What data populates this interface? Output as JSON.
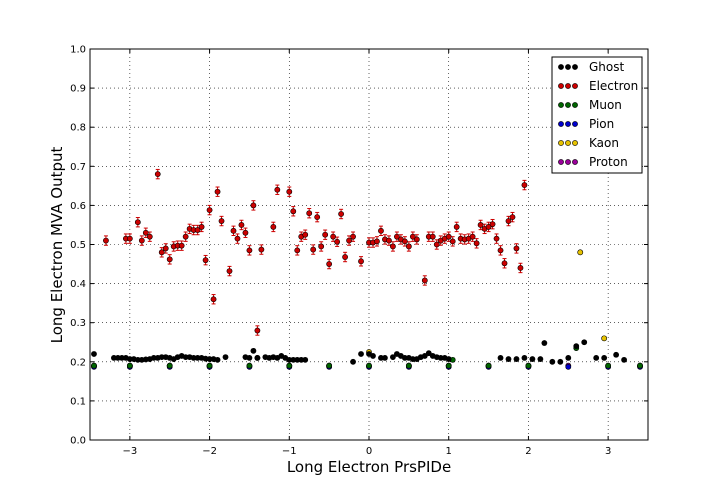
{
  "chart_data": {
    "type": "scatter",
    "title": "",
    "xlabel": "Long Electron PrsPIDe",
    "ylabel": "Long Electron MVA Output",
    "xlim": [
      -3.5,
      3.5
    ],
    "ylim": [
      0.0,
      1.0
    ],
    "x_ticks": [
      -3,
      -2,
      -1,
      0,
      1,
      2,
      3
    ],
    "x_tick_labels": [
      "−3",
      "−2",
      "−1",
      "0",
      "1",
      "2",
      "3"
    ],
    "y_ticks": [
      0.0,
      0.1,
      0.2,
      0.3,
      0.4,
      0.5,
      0.6,
      0.7,
      0.8,
      0.9,
      1.0
    ],
    "y_tick_labels": [
      "0.0",
      "0.1",
      "0.2",
      "0.3",
      "0.4",
      "0.5",
      "0.6",
      "0.7",
      "0.8",
      "0.9",
      "1.0"
    ],
    "grid": true,
    "legend_position": "top-right",
    "error_bars": true,
    "series": [
      {
        "name": "Ghost",
        "color": "#000000",
        "points": [
          [
            -3.45,
            0.22
          ],
          [
            -3.2,
            0.21
          ],
          [
            -3.15,
            0.21
          ],
          [
            -3.1,
            0.21
          ],
          [
            -3.05,
            0.21
          ],
          [
            -3.0,
            0.207
          ],
          [
            -2.95,
            0.207
          ],
          [
            -2.9,
            0.205
          ],
          [
            -2.85,
            0.205
          ],
          [
            -2.8,
            0.206
          ],
          [
            -2.75,
            0.207
          ],
          [
            -2.7,
            0.21
          ],
          [
            -2.65,
            0.21
          ],
          [
            -2.6,
            0.212
          ],
          [
            -2.55,
            0.212
          ],
          [
            -2.5,
            0.21
          ],
          [
            -2.45,
            0.207
          ],
          [
            -2.4,
            0.212
          ],
          [
            -2.35,
            0.215
          ],
          [
            -2.3,
            0.212
          ],
          [
            -2.25,
            0.212
          ],
          [
            -2.2,
            0.21
          ],
          [
            -2.15,
            0.21
          ],
          [
            -2.1,
            0.21
          ],
          [
            -2.05,
            0.208
          ],
          [
            -2.0,
            0.207
          ],
          [
            -1.95,
            0.207
          ],
          [
            -1.9,
            0.205
          ],
          [
            -1.8,
            0.212
          ],
          [
            -1.55,
            0.212
          ],
          [
            -1.5,
            0.21
          ],
          [
            -1.45,
            0.228
          ],
          [
            -1.4,
            0.21
          ],
          [
            -1.3,
            0.212
          ],
          [
            -1.25,
            0.21
          ],
          [
            -1.2,
            0.212
          ],
          [
            -1.15,
            0.21
          ],
          [
            -1.1,
            0.215
          ],
          [
            -1.05,
            0.21
          ],
          [
            -1.0,
            0.205
          ],
          [
            -0.95,
            0.205
          ],
          [
            -0.9,
            0.205
          ],
          [
            -0.85,
            0.205
          ],
          [
            -0.8,
            0.205
          ],
          [
            -0.2,
            0.2
          ],
          [
            -0.1,
            0.22
          ],
          [
            0.0,
            0.22
          ],
          [
            0.05,
            0.215
          ],
          [
            0.15,
            0.21
          ],
          [
            0.2,
            0.21
          ],
          [
            0.3,
            0.212
          ],
          [
            0.35,
            0.22
          ],
          [
            0.4,
            0.215
          ],
          [
            0.45,
            0.21
          ],
          [
            0.5,
            0.21
          ],
          [
            0.55,
            0.207
          ],
          [
            0.6,
            0.207
          ],
          [
            0.65,
            0.212
          ],
          [
            0.7,
            0.215
          ],
          [
            0.75,
            0.222
          ],
          [
            0.8,
            0.215
          ],
          [
            0.85,
            0.212
          ],
          [
            0.9,
            0.21
          ],
          [
            0.95,
            0.21
          ],
          [
            1.0,
            0.207
          ],
          [
            1.65,
            0.21
          ],
          [
            1.75,
            0.207
          ],
          [
            1.85,
            0.207
          ],
          [
            1.95,
            0.21
          ],
          [
            2.05,
            0.207
          ],
          [
            2.15,
            0.207
          ],
          [
            2.2,
            0.248
          ],
          [
            2.3,
            0.2
          ],
          [
            2.4,
            0.2
          ],
          [
            2.5,
            0.21
          ],
          [
            2.6,
            0.24
          ],
          [
            2.7,
            0.25
          ],
          [
            2.85,
            0.21
          ],
          [
            2.95,
            0.21
          ],
          [
            3.1,
            0.218
          ],
          [
            3.2,
            0.205
          ]
        ]
      },
      {
        "name": "Electron",
        "color": "#cc0000",
        "points": [
          [
            -3.3,
            0.51
          ],
          [
            -3.05,
            0.515
          ],
          [
            -3.0,
            0.515
          ],
          [
            -2.9,
            0.557
          ],
          [
            -2.85,
            0.51
          ],
          [
            -2.8,
            0.53
          ],
          [
            -2.75,
            0.52
          ],
          [
            -2.65,
            0.68
          ],
          [
            -2.6,
            0.48
          ],
          [
            -2.55,
            0.49
          ],
          [
            -2.5,
            0.462
          ],
          [
            -2.45,
            0.495
          ],
          [
            -2.4,
            0.497
          ],
          [
            -2.35,
            0.497
          ],
          [
            -2.3,
            0.52
          ],
          [
            -2.25,
            0.54
          ],
          [
            -2.2,
            0.537
          ],
          [
            -2.15,
            0.537
          ],
          [
            -2.1,
            0.545
          ],
          [
            -2.05,
            0.46
          ],
          [
            -2.0,
            0.588
          ],
          [
            -1.95,
            0.36
          ],
          [
            -1.9,
            0.635
          ],
          [
            -1.85,
            0.56
          ],
          [
            -1.75,
            0.432
          ],
          [
            -1.7,
            0.535
          ],
          [
            -1.65,
            0.515
          ],
          [
            -1.6,
            0.55
          ],
          [
            -1.55,
            0.53
          ],
          [
            -1.5,
            0.485
          ],
          [
            -1.45,
            0.6
          ],
          [
            -1.4,
            0.28
          ],
          [
            -1.35,
            0.487
          ],
          [
            -1.2,
            0.545
          ],
          [
            -1.15,
            0.64
          ],
          [
            -1.0,
            0.635
          ],
          [
            -0.95,
            0.585
          ],
          [
            -0.9,
            0.485
          ],
          [
            -0.85,
            0.52
          ],
          [
            -0.8,
            0.525
          ],
          [
            -0.75,
            0.58
          ],
          [
            -0.7,
            0.487
          ],
          [
            -0.65,
            0.57
          ],
          [
            -0.6,
            0.495
          ],
          [
            -0.55,
            0.525
          ],
          [
            -0.5,
            0.45
          ],
          [
            -0.45,
            0.52
          ],
          [
            -0.4,
            0.507
          ],
          [
            -0.35,
            0.578
          ],
          [
            -0.3,
            0.468
          ],
          [
            -0.25,
            0.51
          ],
          [
            -0.2,
            0.52
          ],
          [
            -0.1,
            0.457
          ],
          [
            0.0,
            0.505
          ],
          [
            0.05,
            0.505
          ],
          [
            0.1,
            0.508
          ],
          [
            0.15,
            0.535
          ],
          [
            0.2,
            0.513
          ],
          [
            0.25,
            0.51
          ],
          [
            0.3,
            0.495
          ],
          [
            0.35,
            0.52
          ],
          [
            0.4,
            0.513
          ],
          [
            0.45,
            0.508
          ],
          [
            0.5,
            0.495
          ],
          [
            0.55,
            0.52
          ],
          [
            0.6,
            0.513
          ],
          [
            0.7,
            0.408
          ],
          [
            0.75,
            0.52
          ],
          [
            0.8,
            0.52
          ],
          [
            0.85,
            0.5
          ],
          [
            0.9,
            0.51
          ],
          [
            0.95,
            0.515
          ],
          [
            1.0,
            0.52
          ],
          [
            1.05,
            0.508
          ],
          [
            1.1,
            0.545
          ],
          [
            1.15,
            0.515
          ],
          [
            1.2,
            0.513
          ],
          [
            1.25,
            0.515
          ],
          [
            1.3,
            0.52
          ],
          [
            1.35,
            0.503
          ],
          [
            1.4,
            0.55
          ],
          [
            1.45,
            0.54
          ],
          [
            1.5,
            0.545
          ],
          [
            1.55,
            0.552
          ],
          [
            1.6,
            0.515
          ],
          [
            1.65,
            0.485
          ],
          [
            1.7,
            0.452
          ],
          [
            1.75,
            0.56
          ],
          [
            1.8,
            0.57
          ],
          [
            1.85,
            0.49
          ],
          [
            1.9,
            0.44
          ],
          [
            1.95,
            0.652
          ]
        ]
      },
      {
        "name": "Muon",
        "color": "#006400",
        "points": [
          [
            -3.45,
            0.19
          ],
          [
            -3.0,
            0.19
          ],
          [
            -2.5,
            0.19
          ],
          [
            -2.0,
            0.19
          ],
          [
            -1.5,
            0.19
          ],
          [
            -1.0,
            0.19
          ],
          [
            -0.5,
            0.19
          ],
          [
            0.0,
            0.19
          ],
          [
            0.5,
            0.19
          ],
          [
            1.0,
            0.19
          ],
          [
            1.05,
            0.205
          ],
          [
            1.5,
            0.19
          ],
          [
            2.0,
            0.19
          ],
          [
            2.6,
            0.235
          ],
          [
            3.0,
            0.19
          ],
          [
            3.4,
            0.19
          ]
        ]
      },
      {
        "name": "Pion",
        "color": "#0000cc",
        "points": [
          [
            -3.45,
            0.187
          ],
          [
            -3.0,
            0.187
          ],
          [
            -2.5,
            0.187
          ],
          [
            -2.0,
            0.187
          ],
          [
            -1.5,
            0.187
          ],
          [
            -1.0,
            0.187
          ],
          [
            -0.5,
            0.187
          ],
          [
            0.0,
            0.187
          ],
          [
            0.5,
            0.187
          ],
          [
            1.0,
            0.187
          ],
          [
            1.5,
            0.187
          ],
          [
            2.0,
            0.187
          ],
          [
            2.5,
            0.187
          ],
          [
            3.0,
            0.187
          ],
          [
            3.4,
            0.187
          ]
        ]
      },
      {
        "name": "Kaon",
        "color": "#e6c200",
        "points": [
          [
            -3.45,
            0.19
          ],
          [
            -3.0,
            0.19
          ],
          [
            -2.5,
            0.19
          ],
          [
            -2.0,
            0.19
          ],
          [
            -1.4,
            0.21
          ],
          [
            -1.0,
            0.19
          ],
          [
            -0.5,
            0.19
          ],
          [
            0.0,
            0.225
          ],
          [
            0.5,
            0.19
          ],
          [
            1.0,
            0.19
          ],
          [
            1.5,
            0.19
          ],
          [
            2.0,
            0.19
          ],
          [
            2.65,
            0.48
          ],
          [
            2.95,
            0.26
          ],
          [
            3.4,
            0.19
          ]
        ]
      },
      {
        "name": "Proton",
        "color": "#990099",
        "points": [
          [
            -3.45,
            0.19
          ],
          [
            -3.0,
            0.19
          ],
          [
            -2.5,
            0.19
          ],
          [
            -2.0,
            0.19
          ],
          [
            -1.5,
            0.19
          ],
          [
            -1.0,
            0.19
          ],
          [
            -0.5,
            0.19
          ],
          [
            0.0,
            0.19
          ],
          [
            0.5,
            0.19
          ],
          [
            1.0,
            0.19
          ],
          [
            1.5,
            0.19
          ],
          [
            2.0,
            0.19
          ],
          [
            2.5,
            0.19
          ],
          [
            3.0,
            0.19
          ],
          [
            3.4,
            0.19
          ]
        ]
      }
    ]
  }
}
